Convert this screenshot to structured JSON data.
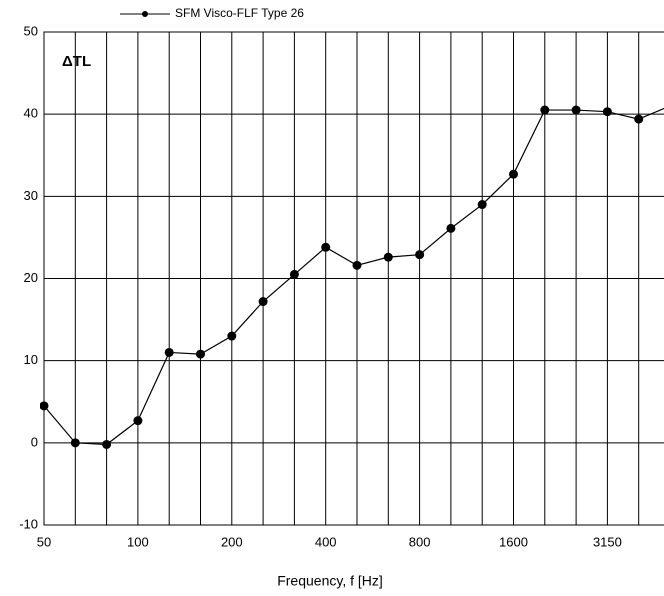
{
  "chart_data": {
    "type": "line",
    "legend_label": "SFM Visco-FLF Type 26",
    "annotation": "ΔTL",
    "x_label": "Frequency, f [Hz]",
    "categories": [
      "50",
      null,
      null,
      "100",
      null,
      null,
      "200",
      null,
      null,
      "400",
      null,
      null,
      "800",
      null,
      null,
      "1600",
      null,
      null,
      "3150",
      null,
      null
    ],
    "series": [
      {
        "name": "SFM Visco-FLF Type 26",
        "color": "#000000",
        "values": [
          4.5,
          0,
          -0.2,
          2.7,
          11,
          10.8,
          13,
          17.2,
          20.5,
          23.8,
          21.6,
          22.6,
          22.9,
          26.1,
          29,
          32.7,
          40.5,
          40.5,
          40.3,
          39.4,
          41
        ]
      }
    ],
    "ylim": [
      -10,
      50
    ],
    "yticks": [
      -10,
      0,
      10,
      20,
      30,
      40,
      50
    ],
    "grid": true
  }
}
